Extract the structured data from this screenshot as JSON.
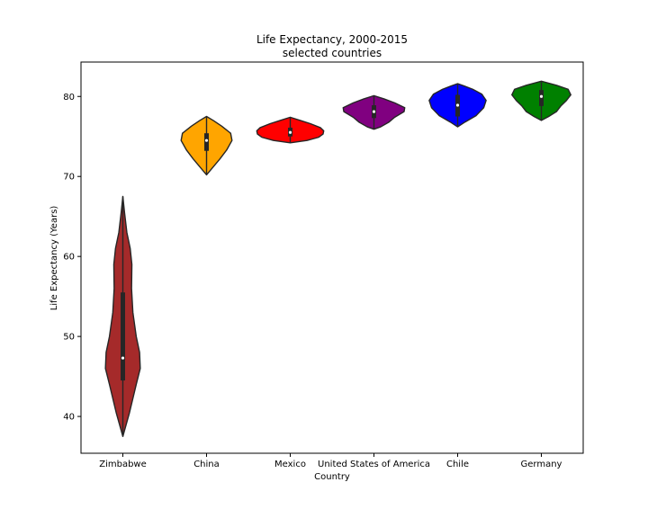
{
  "chart_data": {
    "type": "violin",
    "title": "Life Expectancy, 2000-2015",
    "subtitle": "selected countries",
    "xlabel": "Country",
    "ylabel": "Life Expectancy (Years)",
    "ylim": [
      35.4,
      84.3
    ],
    "yticks": [
      "40",
      "50",
      "60",
      "70",
      "80"
    ],
    "grid": false,
    "categories": [
      "Zimbabwe",
      "China",
      "Mexico",
      "United States of America",
      "Chile",
      "Germany"
    ],
    "series": [
      {
        "name": "Zimbabwe",
        "color": "#a52a2a",
        "min": 37.5,
        "max": 67.5,
        "q1": 44.5,
        "median": 47.3,
        "q3": 55.5,
        "shape": [
          [
            37.5,
            0.0
          ],
          [
            40.5,
            0.2
          ],
          [
            44.0,
            0.4
          ],
          [
            46.0,
            0.52
          ],
          [
            48.0,
            0.5
          ],
          [
            50.0,
            0.4
          ],
          [
            53.0,
            0.3
          ],
          [
            56.0,
            0.26
          ],
          [
            59.0,
            0.27
          ],
          [
            61.0,
            0.22
          ],
          [
            63.0,
            0.12
          ],
          [
            65.5,
            0.05
          ],
          [
            67.5,
            0.0
          ]
        ]
      },
      {
        "name": "China",
        "color": "#ffa500",
        "min": 70.2,
        "max": 77.5,
        "q1": 73.2,
        "median": 74.5,
        "q3": 75.4,
        "shape": [
          [
            70.2,
            0.0
          ],
          [
            71.2,
            0.2
          ],
          [
            72.2,
            0.4
          ],
          [
            73.3,
            0.6
          ],
          [
            74.5,
            0.76
          ],
          [
            75.4,
            0.72
          ],
          [
            76.3,
            0.45
          ],
          [
            77.0,
            0.2
          ],
          [
            77.5,
            0.0
          ]
        ]
      },
      {
        "name": "Mexico",
        "color": "#ff0000",
        "min": 74.2,
        "max": 77.4,
        "q1": 75.0,
        "median": 75.5,
        "q3": 76.1,
        "shape": [
          [
            74.2,
            0.0
          ],
          [
            74.5,
            0.5
          ],
          [
            74.9,
            0.85
          ],
          [
            75.3,
            0.98
          ],
          [
            75.7,
            1.0
          ],
          [
            76.1,
            0.9
          ],
          [
            76.6,
            0.6
          ],
          [
            77.0,
            0.3
          ],
          [
            77.4,
            0.0
          ]
        ]
      },
      {
        "name": "United States of America",
        "color": "#800080",
        "min": 75.9,
        "max": 80.1,
        "q1": 77.3,
        "median": 78.1,
        "q3": 78.9,
        "shape": [
          [
            75.9,
            0.0
          ],
          [
            76.2,
            0.2
          ],
          [
            76.8,
            0.45
          ],
          [
            77.4,
            0.62
          ],
          [
            78.1,
            0.9
          ],
          [
            78.6,
            0.92
          ],
          [
            79.2,
            0.62
          ],
          [
            79.7,
            0.3
          ],
          [
            80.1,
            0.0
          ]
        ]
      },
      {
        "name": "Chile",
        "color": "#0000ff",
        "min": 76.2,
        "max": 81.6,
        "q1": 77.5,
        "median": 78.9,
        "q3": 80.2,
        "shape": [
          [
            76.2,
            0.0
          ],
          [
            76.8,
            0.22
          ],
          [
            77.6,
            0.55
          ],
          [
            78.6,
            0.78
          ],
          [
            79.5,
            0.85
          ],
          [
            80.3,
            0.72
          ],
          [
            80.9,
            0.45
          ],
          [
            81.3,
            0.2
          ],
          [
            81.6,
            0.0
          ]
        ]
      },
      {
        "name": "Germany",
        "color": "#008000",
        "min": 77.0,
        "max": 81.9,
        "q1": 78.8,
        "median": 80.0,
        "q3": 80.8,
        "shape": [
          [
            77.0,
            0.0
          ],
          [
            77.5,
            0.22
          ],
          [
            78.1,
            0.45
          ],
          [
            78.8,
            0.58
          ],
          [
            79.5,
            0.75
          ],
          [
            80.2,
            0.88
          ],
          [
            80.9,
            0.8
          ],
          [
            81.4,
            0.45
          ],
          [
            81.9,
            0.0
          ]
        ]
      }
    ]
  }
}
